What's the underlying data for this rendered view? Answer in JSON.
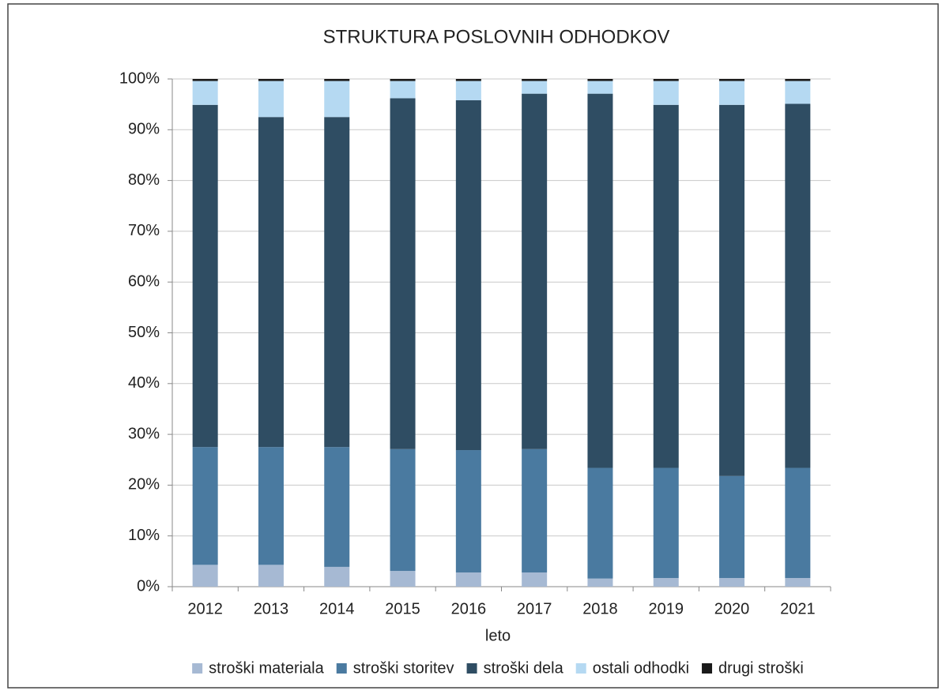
{
  "chart_data": {
    "type": "stacked_bar",
    "title": "STRUKTURA POSLOVNIH ODHODKOV",
    "x_label": "leto",
    "categories": [
      "2012",
      "2013",
      "2014",
      "2015",
      "2016",
      "2017",
      "2018",
      "2019",
      "2020",
      "2021"
    ],
    "series": [
      {
        "name": "stroški materiala",
        "color": "#a6b9d3",
        "values": [
          4.3,
          4.3,
          3.9,
          3.1,
          2.8,
          2.8,
          1.6,
          1.7,
          1.7,
          1.7
        ]
      },
      {
        "name": "stroški storitev",
        "color": "#4a7aa0",
        "values": [
          23.2,
          23.2,
          23.6,
          24.0,
          24.1,
          24.3,
          21.8,
          21.7,
          20.1,
          21.7
        ]
      },
      {
        "name": "stroški dela",
        "color": "#2f4d63",
        "values": [
          67.4,
          65.0,
          65.0,
          69.1,
          68.9,
          70.0,
          73.7,
          71.5,
          73.1,
          71.7
        ]
      },
      {
        "name": "ostali odhodki",
        "color": "#b5d9f2",
        "values": [
          4.7,
          7.1,
          7.1,
          3.4,
          3.8,
          2.5,
          2.5,
          4.7,
          4.7,
          4.5
        ]
      },
      {
        "name": "drugi stroški",
        "color": "#1a1a1a",
        "values": [
          0.4,
          0.4,
          0.4,
          0.4,
          0.4,
          0.4,
          0.4,
          0.4,
          0.4,
          0.4
        ]
      }
    ],
    "ylim": [
      0,
      100
    ],
    "yticks": [
      {
        "value": 0,
        "label": "0%"
      },
      {
        "value": 10,
        "label": "10%"
      },
      {
        "value": 20,
        "label": "20%"
      },
      {
        "value": 30,
        "label": "30%"
      },
      {
        "value": 40,
        "label": "40%"
      },
      {
        "value": 50,
        "label": "50%"
      },
      {
        "value": 60,
        "label": "60%"
      },
      {
        "value": 70,
        "label": "70%"
      },
      {
        "value": 80,
        "label": "80%"
      },
      {
        "value": 90,
        "label": "90%"
      },
      {
        "value": 100,
        "label": "100%"
      }
    ],
    "grid": true,
    "legend": "bottom"
  }
}
